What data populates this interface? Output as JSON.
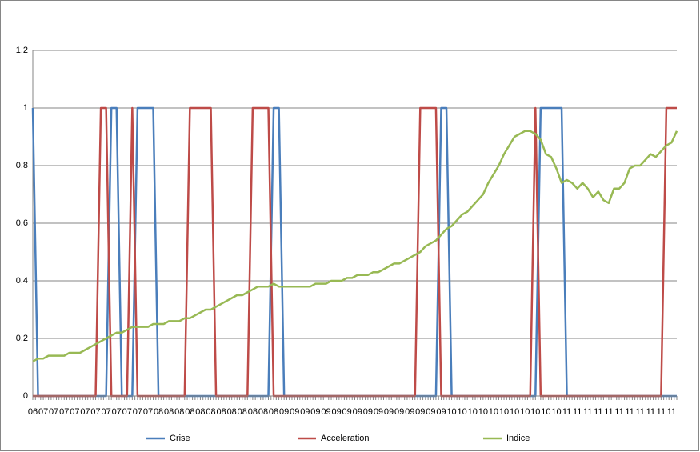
{
  "chart_data": {
    "type": "line",
    "categories": [
      "06",
      null,
      "07",
      null,
      "07",
      null,
      "07",
      null,
      "07",
      null,
      "07",
      null,
      "07",
      null,
      "07",
      null,
      "07",
      null,
      "07",
      null,
      "07",
      null,
      "07",
      null,
      "08",
      null,
      "08",
      null,
      "08",
      null,
      "08",
      null,
      "08",
      null,
      "08",
      null,
      "08",
      null,
      "08",
      null,
      "08",
      null,
      "08",
      null,
      "08",
      null,
      "08",
      null,
      "09",
      null,
      "09",
      null,
      "09",
      null,
      "09",
      null,
      "09",
      null,
      "09",
      null,
      "09",
      null,
      "09",
      null,
      "09",
      null,
      "09",
      null,
      "09",
      null,
      "09",
      null,
      "09",
      null,
      "09",
      null,
      "09",
      null,
      "09",
      null,
      "10",
      null,
      "10",
      null,
      "10",
      null,
      "10",
      null,
      "10",
      null,
      "10",
      null,
      "10",
      null,
      "10",
      null,
      "10",
      null,
      "10",
      null,
      "10",
      null,
      "11",
      null,
      "11",
      null,
      "11",
      null,
      "11",
      null,
      "11",
      null,
      "11",
      null,
      "11",
      null,
      "11",
      null,
      "11",
      null,
      "11",
      null,
      "11",
      null
    ],
    "series": [
      {
        "name": "Crise",
        "color": "#4a7ebb",
        "values": [
          1,
          0,
          0,
          0,
          0,
          0,
          0,
          0,
          0,
          0,
          0,
          0,
          0,
          0,
          0,
          1,
          1,
          0,
          0,
          0,
          1,
          1,
          1,
          1,
          0,
          0,
          0,
          0,
          0,
          0,
          0,
          0,
          0,
          0,
          0,
          0,
          0,
          0,
          0,
          0,
          0,
          0,
          0,
          0,
          0,
          0,
          1,
          1,
          0,
          0,
          0,
          0,
          0,
          0,
          0,
          0,
          0,
          0,
          0,
          0,
          0,
          0,
          0,
          0,
          0,
          0,
          0,
          0,
          0,
          0,
          0,
          0,
          0,
          0,
          0,
          0,
          0,
          0,
          1,
          1,
          0,
          0,
          0,
          0,
          0,
          0,
          0,
          0,
          0,
          0,
          0,
          0,
          0,
          0,
          0,
          0,
          0,
          1,
          1,
          1,
          1,
          1,
          0,
          0,
          0,
          0,
          0,
          0,
          0,
          0,
          0,
          0,
          0,
          0,
          0,
          0,
          0,
          0,
          0,
          0,
          0,
          0,
          0,
          0
        ]
      },
      {
        "name": "Acceleration",
        "color": "#be4b48",
        "values": [
          0,
          0,
          0,
          0,
          0,
          0,
          0,
          0,
          0,
          0,
          0,
          0,
          0,
          1,
          1,
          0,
          0,
          0,
          0,
          1,
          0,
          0,
          0,
          0,
          0,
          0,
          0,
          0,
          0,
          0,
          1,
          1,
          1,
          1,
          1,
          0,
          0,
          0,
          0,
          0,
          0,
          0,
          1,
          1,
          1,
          1,
          0,
          0,
          0,
          0,
          0,
          0,
          0,
          0,
          0,
          0,
          0,
          0,
          0,
          0,
          0,
          0,
          0,
          0,
          0,
          0,
          0,
          0,
          0,
          0,
          0,
          0,
          0,
          0,
          1,
          1,
          1,
          1,
          0,
          0,
          0,
          0,
          0,
          0,
          0,
          0,
          0,
          0,
          0,
          0,
          0,
          0,
          0,
          0,
          0,
          0,
          1,
          0,
          0,
          0,
          0,
          0,
          0,
          0,
          0,
          0,
          0,
          0,
          0,
          0,
          0,
          0,
          0,
          0,
          0,
          0,
          0,
          0,
          0,
          0,
          0,
          1,
          1,
          1
        ]
      },
      {
        "name": "Indice",
        "color": "#98b954",
        "values": [
          0.12,
          0.13,
          0.13,
          0.14,
          0.14,
          0.14,
          0.14,
          0.15,
          0.15,
          0.15,
          0.16,
          0.17,
          0.18,
          0.19,
          0.2,
          0.21,
          0.22,
          0.22,
          0.23,
          0.24,
          0.24,
          0.24,
          0.24,
          0.25,
          0.25,
          0.25,
          0.26,
          0.26,
          0.26,
          0.27,
          0.27,
          0.28,
          0.29,
          0.3,
          0.3,
          0.31,
          0.32,
          0.33,
          0.34,
          0.35,
          0.35,
          0.36,
          0.37,
          0.38,
          0.38,
          0.38,
          0.39,
          0.38,
          0.38,
          0.38,
          0.38,
          0.38,
          0.38,
          0.38,
          0.39,
          0.39,
          0.39,
          0.4,
          0.4,
          0.4,
          0.41,
          0.41,
          0.42,
          0.42,
          0.42,
          0.43,
          0.43,
          0.44,
          0.45,
          0.46,
          0.46,
          0.47,
          0.48,
          0.49,
          0.5,
          0.52,
          0.53,
          0.54,
          0.56,
          0.58,
          0.59,
          0.61,
          0.63,
          0.64,
          0.66,
          0.68,
          0.7,
          0.74,
          0.77,
          0.8,
          0.84,
          0.87,
          0.9,
          0.91,
          0.92,
          0.92,
          0.91,
          0.89,
          0.84,
          0.83,
          0.79,
          0.74,
          0.75,
          0.74,
          0.72,
          0.74,
          0.72,
          0.69,
          0.71,
          0.68,
          0.67,
          0.72,
          0.72,
          0.74,
          0.79,
          0.8,
          0.8,
          0.82,
          0.84,
          0.83,
          0.85,
          0.87,
          0.88,
          0.92
        ]
      }
    ],
    "ylim": [
      0,
      1.2
    ],
    "yticks": [
      0,
      {
        "value": 0.2,
        "label": "0,2"
      },
      {
        "value": 0.4,
        "label": "0,4"
      },
      {
        "value": 0.6,
        "label": "0,6"
      },
      {
        "value": 0.8,
        "label": "0,8"
      },
      1,
      {
        "value": 1.2,
        "label": "1,2"
      }
    ],
    "grid": true,
    "legend": "bottom"
  }
}
